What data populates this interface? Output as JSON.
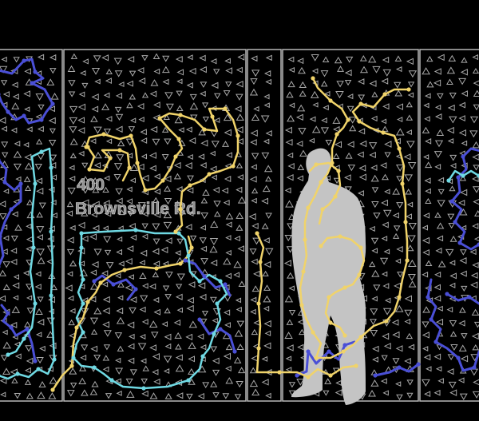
{
  "address": {
    "line1": "400",
    "line2": "Brownsville Rd."
  },
  "colors": {
    "background": "#000000",
    "frame": "#b7b7b7",
    "perforation": "#a8a8a8",
    "yellow": "#f0d36a",
    "cyan": "#6fd9e3",
    "blue": "#4a4fd6",
    "silhouette": "#c4c4c4",
    "address_text": "#8f8f8f"
  },
  "icons": {
    "perforation": "triangle-perforation-icon",
    "figure": "human-silhouette"
  }
}
